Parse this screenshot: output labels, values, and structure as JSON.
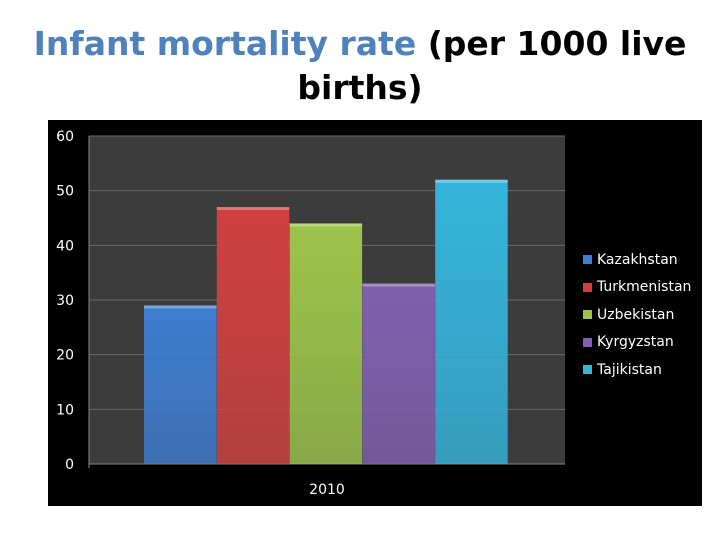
{
  "chart_data": {
    "type": "bar",
    "title_highlight": "Infant mortality rate",
    "title_rest": " (per 1000 live births)",
    "categories": [
      "2010"
    ],
    "series": [
      {
        "name": "Kazakhstan",
        "values": [
          29
        ],
        "color": "#3f7dd0"
      },
      {
        "name": "Turkmenistan",
        "values": [
          47
        ],
        "color": "#d04040"
      },
      {
        "name": "Uzbekistan",
        "values": [
          44
        ],
        "color": "#9cc44a"
      },
      {
        "name": "Kyrgyzstan",
        "values": [
          33
        ],
        "color": "#8060b0"
      },
      {
        "name": "Tajikistan",
        "values": [
          52
        ],
        "color": "#35b5dc"
      }
    ],
    "ylim": [
      0,
      60
    ],
    "yticks": [
      0,
      10,
      20,
      30,
      40,
      50,
      60
    ],
    "grid": true,
    "legend": "right"
  }
}
